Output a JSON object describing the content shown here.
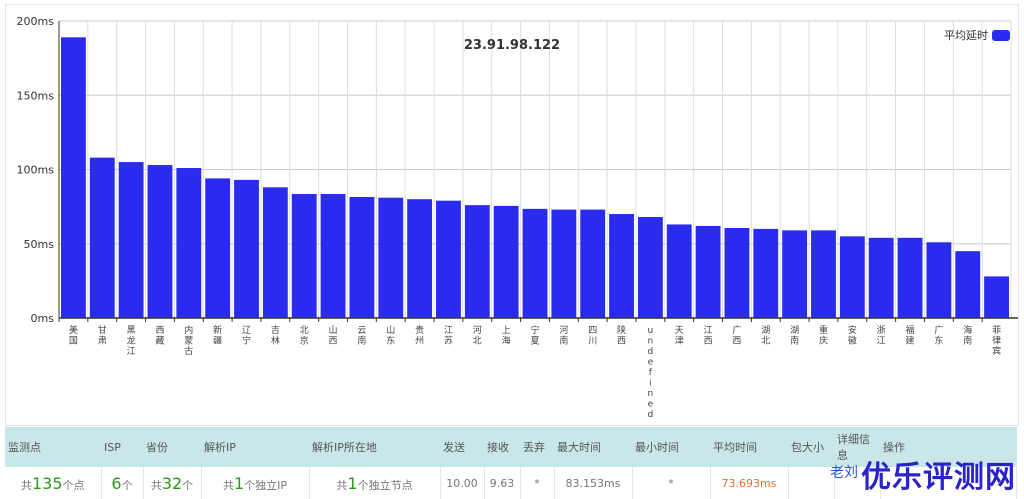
{
  "chart_data": {
    "type": "bar",
    "title": "23.91.98.122",
    "legend": "平均延时",
    "legend_position": "top-right",
    "ylabel": "",
    "xlabel": "",
    "ylim": [
      0,
      200
    ],
    "yticks": [
      "0ms",
      "50ms",
      "100ms",
      "150ms",
      "200ms"
    ],
    "grid": true,
    "color": "#2b2bf0",
    "categories": [
      "美国",
      "甘肃",
      "黑龙江",
      "西藏",
      "内蒙古",
      "新疆",
      "辽宁",
      "吉林",
      "北京",
      "山西",
      "云南",
      "山东",
      "贵州",
      "江苏",
      "河北",
      "上海",
      "宁夏",
      "河南",
      "四川",
      "陕西",
      "undefined",
      "天津",
      "江西",
      "广西",
      "湖北",
      "湖南",
      "重庆",
      "安徽",
      "浙江",
      "福建",
      "广东",
      "海南",
      "菲律宾"
    ],
    "values": [
      189,
      108,
      105,
      103,
      101,
      94,
      93,
      88,
      83.5,
      83.5,
      81.5,
      81,
      80,
      79,
      76,
      75.5,
      73.5,
      73,
      73,
      70,
      68,
      63,
      62,
      60.6,
      60,
      59,
      59,
      55,
      54,
      54,
      51,
      45,
      28
    ]
  },
  "table": {
    "headers": [
      "监测点",
      "ISP",
      "省份",
      "解析IP",
      "解析IP所在地",
      "发送",
      "接收",
      "丢弃",
      "最大时间",
      "最小时间",
      "平均时间",
      "包大小",
      "详细信息",
      "操作"
    ],
    "row": {
      "total_pre": "共",
      "total_num": "135",
      "total_suf": "个点",
      "isp_num": "6",
      "isp_suf": "个",
      "prov_pre": "共",
      "prov_num": "32",
      "prov_suf": "个",
      "ip_pre": "共",
      "ip_num": "1",
      "ip_suf": "个独立IP",
      "loc_pre": "共",
      "loc_num": "1",
      "loc_suf": "个独立节点",
      "sent": "10.00",
      "recv": "9.63",
      "drop": "*",
      "max": "83.153ms",
      "min": "*",
      "avg": "73.693ms"
    }
  },
  "watermark": "优乐评测网",
  "watermark_sub": "老刘"
}
